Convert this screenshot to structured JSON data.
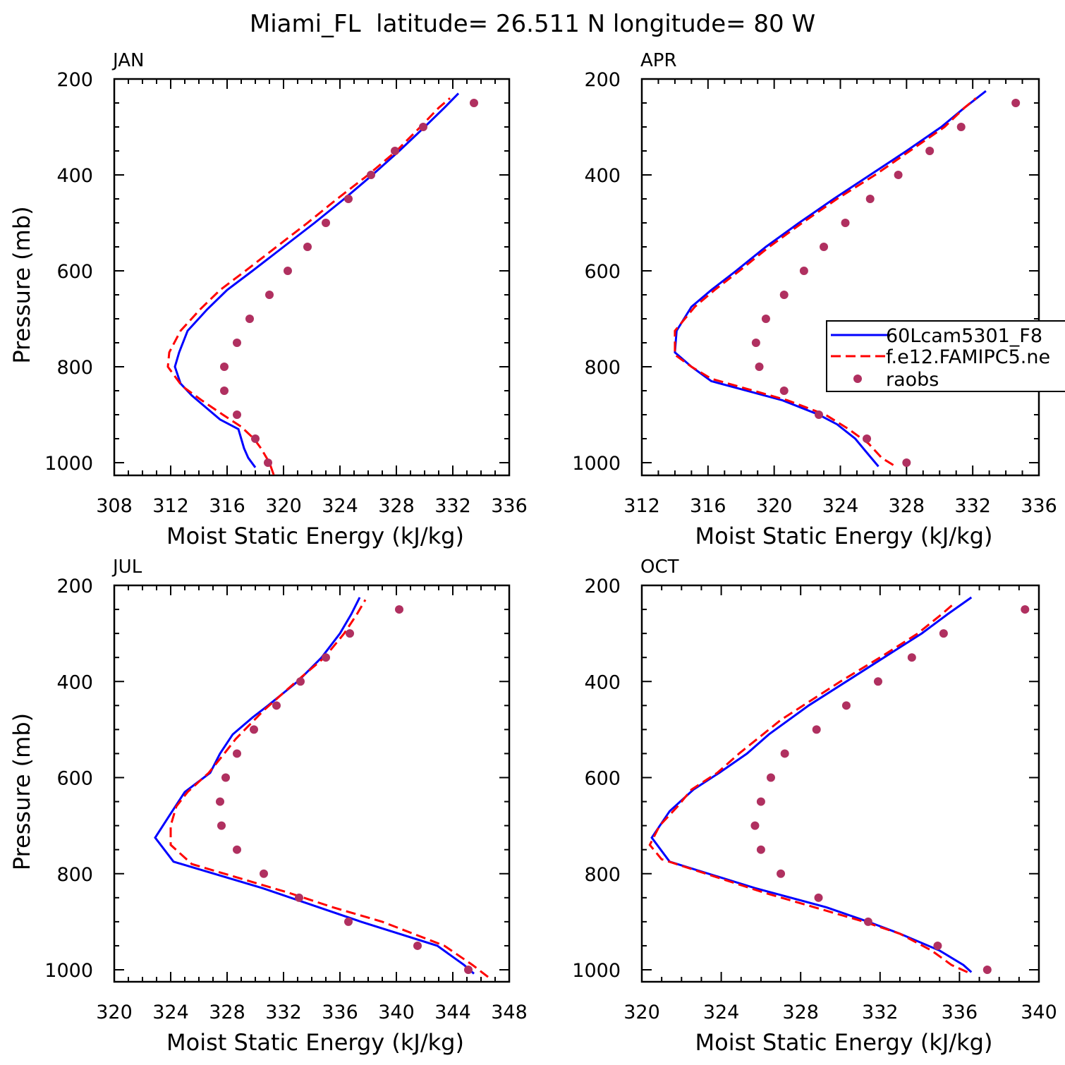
{
  "figure": {
    "title": "Miami_FL  latitude= 26.511 N longitude= 80 W"
  },
  "legend": {
    "entries": [
      {
        "label": "60Lcam5301_F8",
        "color": "#0000ff",
        "style": "solid"
      },
      {
        "label": "f.e12.FAMIPC5.ne",
        "color": "#ff0000",
        "style": "dashed"
      },
      {
        "label": "raobs",
        "color": "#b03060",
        "style": "dots"
      }
    ]
  },
  "colors": {
    "model1": "#0000ff",
    "model2": "#ff0000",
    "obs": "#b03060"
  },
  "chart_data": [
    {
      "type": "line",
      "title": "JAN",
      "xlabel": "Moist Static Energy (kJ/kg)",
      "ylabel": "Pressure (mb)",
      "xlim": [
        308,
        336
      ],
      "xticks": [
        "308",
        "312",
        "316",
        "320",
        "324",
        "328",
        "332",
        "336"
      ],
      "ylim": [
        200,
        1025
      ],
      "yticks": [
        "200",
        "400",
        "600",
        "800",
        "1000"
      ],
      "series": [
        {
          "name": "60Lcam5301_F8",
          "pressure": [
            1010,
            990,
            970,
            930,
            910,
            880,
            860,
            835,
            800,
            770,
            725,
            680,
            640,
            600,
            550,
            500,
            450,
            400,
            350,
            300,
            260,
            230
          ],
          "values": [
            318.0,
            317.5,
            317.2,
            316.8,
            315.5,
            314.3,
            313.5,
            312.7,
            312.3,
            312.6,
            313.2,
            314.6,
            316.0,
            317.8,
            320.0,
            322.2,
            324.3,
            326.3,
            328.2,
            330.0,
            331.4,
            332.4
          ]
        },
        {
          "name": "f.e12.FAMIPC5.ne",
          "pressure": [
            1025,
            1000,
            970,
            950,
            925,
            900,
            870,
            840,
            800,
            770,
            725,
            680,
            640,
            600,
            550,
            500,
            450,
            400,
            350,
            300,
            260,
            240
          ],
          "values": [
            319.3,
            319.0,
            318.4,
            317.9,
            317.0,
            315.7,
            314.2,
            312.8,
            311.8,
            311.9,
            312.7,
            314.1,
            315.5,
            317.3,
            319.5,
            321.7,
            323.8,
            326.0,
            328.0,
            329.7,
            331.0,
            331.8
          ]
        },
        {
          "name": "raobs",
          "pressure": [
            1000,
            950,
            900,
            850,
            800,
            750,
            700,
            650,
            600,
            550,
            500,
            450,
            400,
            350,
            300,
            250
          ],
          "values": [
            318.9,
            318.0,
            316.7,
            315.8,
            315.8,
            316.7,
            317.6,
            319.0,
            320.3,
            321.7,
            323.0,
            324.6,
            326.2,
            327.9,
            329.9,
            333.5
          ]
        }
      ]
    },
    {
      "type": "line",
      "title": "APR",
      "xlabel": "Moist Static Energy (kJ/kg)",
      "ylabel": "",
      "xlim": [
        312,
        336
      ],
      "xticks": [
        "312",
        "316",
        "320",
        "324",
        "328",
        "332",
        "336"
      ],
      "ylim": [
        200,
        1025
      ],
      "yticks": [
        "200",
        "400",
        "600",
        "800",
        "1000"
      ],
      "series": [
        {
          "name": "60Lcam5301_F8",
          "pressure": [
            1008,
            975,
            950,
            920,
            900,
            870,
            830,
            800,
            770,
            725,
            675,
            640,
            600,
            550,
            500,
            450,
            400,
            350,
            300,
            260,
            225
          ],
          "values": [
            326.3,
            325.5,
            324.9,
            323.8,
            322.7,
            320.5,
            316.2,
            315.0,
            314.0,
            314.1,
            315.0,
            316.2,
            317.7,
            319.5,
            321.5,
            323.6,
            325.8,
            328.0,
            330.1,
            331.5,
            332.8
          ]
        },
        {
          "name": "f.e12.FAMIPC5.ne",
          "pressure": [
            1005,
            990,
            960,
            930,
            900,
            870,
            825,
            800,
            775,
            725,
            675,
            640,
            600,
            550,
            500,
            450,
            400,
            350,
            300,
            260,
            240
          ],
          "values": [
            327.2,
            326.5,
            325.7,
            324.5,
            323.1,
            320.8,
            316.2,
            315.0,
            314.0,
            314.0,
            315.2,
            316.4,
            317.9,
            319.7,
            321.7,
            323.8,
            326.1,
            328.2,
            330.3,
            331.5,
            332.2
          ]
        },
        {
          "name": "raobs",
          "pressure": [
            1000,
            950,
            900,
            850,
            800,
            750,
            700,
            650,
            600,
            550,
            500,
            450,
            400,
            350,
            300,
            250
          ],
          "values": [
            328.0,
            325.6,
            322.7,
            320.6,
            319.1,
            318.9,
            319.5,
            320.6,
            321.8,
            323.0,
            324.3,
            325.8,
            327.5,
            329.4,
            331.3,
            334.6
          ]
        }
      ]
    },
    {
      "type": "line",
      "title": "JUL",
      "xlabel": "Moist Static Energy (kJ/kg)",
      "ylabel": "Pressure (mb)",
      "xlim": [
        320,
        348
      ],
      "xticks": [
        "320",
        "324",
        "328",
        "332",
        "336",
        "340",
        "344",
        "348"
      ],
      "ylim": [
        200,
        1025
      ],
      "yticks": [
        "200",
        "400",
        "600",
        "800",
        "1000"
      ],
      "series": [
        {
          "name": "60Lcam5301_F8",
          "pressure": [
            1008,
            990,
            950,
            900,
            870,
            830,
            775,
            725,
            675,
            630,
            590,
            550,
            510,
            475,
            450,
            400,
            350,
            300,
            260,
            225
          ],
          "values": [
            345.5,
            344.8,
            342.9,
            337.5,
            334.5,
            330.5,
            324.2,
            322.9,
            324.0,
            325.0,
            326.8,
            327.5,
            328.4,
            329.8,
            330.9,
            333.0,
            334.7,
            336.0,
            336.8,
            337.4
          ]
        },
        {
          "name": "f.e12.FAMIPC5.ne",
          "pressure": [
            1015,
            990,
            950,
            900,
            870,
            840,
            780,
            740,
            700,
            660,
            630,
            590,
            550,
            520,
            490,
            460,
            400,
            350,
            300,
            260,
            230
          ],
          "values": [
            346.5,
            345.4,
            343.4,
            339.0,
            335.5,
            332.4,
            325.5,
            324.0,
            324.0,
            324.4,
            325.2,
            326.7,
            327.8,
            328.6,
            329.6,
            330.6,
            332.9,
            334.9,
            336.3,
            337.2,
            337.8
          ]
        },
        {
          "name": "raobs",
          "pressure": [
            1000,
            950,
            900,
            850,
            800,
            750,
            700,
            650,
            600,
            550,
            500,
            450,
            400,
            350,
            300,
            250
          ],
          "values": [
            345.1,
            341.5,
            336.6,
            333.1,
            330.6,
            328.7,
            327.6,
            327.5,
            327.9,
            328.7,
            329.9,
            331.5,
            333.2,
            335.0,
            336.7,
            340.2
          ]
        }
      ]
    },
    {
      "type": "line",
      "title": "OCT",
      "xlabel": "Moist Static Energy (kJ/kg)",
      "ylabel": "",
      "xlim": [
        320,
        340
      ],
      "xticks": [
        "320",
        "324",
        "328",
        "332",
        "336",
        "340"
      ],
      "ylim": [
        200,
        1025
      ],
      "yticks": [
        "200",
        "400",
        "600",
        "800",
        "1000"
      ],
      "series": [
        {
          "name": "60Lcam5301_F8",
          "pressure": [
            1005,
            990,
            960,
            925,
            900,
            870,
            830,
            775,
            725,
            670,
            625,
            590,
            550,
            510,
            450,
            400,
            350,
            300,
            260,
            225
          ],
          "values": [
            336.6,
            336.2,
            335.0,
            333.0,
            331.4,
            329.3,
            325.7,
            321.4,
            320.5,
            321.4,
            322.6,
            323.9,
            325.3,
            326.4,
            328.4,
            330.3,
            332.2,
            334.1,
            335.4,
            336.6
          ]
        },
        {
          "name": "f.e12.FAMIPC5.ne",
          "pressure": [
            1005,
            990,
            960,
            925,
            900,
            870,
            840,
            770,
            740,
            700,
            660,
            625,
            590,
            550,
            520,
            480,
            440,
            400,
            350,
            300,
            260,
            235
          ],
          "values": [
            336.4,
            335.6,
            334.6,
            333.0,
            331.2,
            328.7,
            326.2,
            321.0,
            320.4,
            320.9,
            321.8,
            322.5,
            323.8,
            324.9,
            325.8,
            327.0,
            328.5,
            330.0,
            332.0,
            333.9,
            335.1,
            335.8
          ]
        },
        {
          "name": "raobs",
          "pressure": [
            1000,
            950,
            900,
            850,
            800,
            750,
            700,
            650,
            600,
            550,
            500,
            450,
            400,
            350,
            300,
            250
          ],
          "values": [
            337.4,
            334.9,
            331.4,
            328.9,
            327.0,
            326.0,
            325.7,
            326.0,
            326.5,
            327.2,
            328.8,
            330.3,
            331.9,
            333.6,
            335.2,
            339.3
          ]
        }
      ]
    }
  ]
}
